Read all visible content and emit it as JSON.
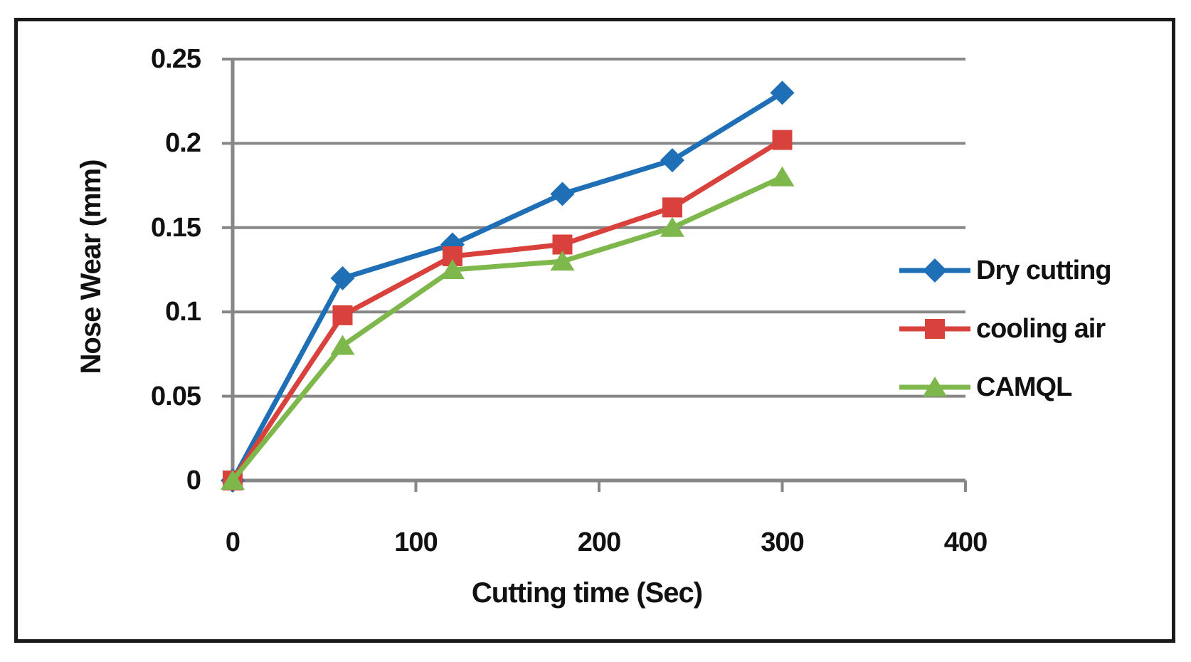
{
  "figure": {
    "background": "#ffffff",
    "border_color": "#1a1a1a",
    "axis_color": "#878787",
    "text_color": "#111111"
  },
  "chart_data": {
    "type": "line",
    "title": "",
    "xlabel": "Cutting time (Sec)",
    "ylabel": "Nose Wear (mm)",
    "x": [
      0,
      60,
      120,
      180,
      240,
      300
    ],
    "series": [
      {
        "name": "Dry cutting",
        "marker": "diamond",
        "color": "#1E6FB5",
        "values": [
          0,
          0.12,
          0.14,
          0.17,
          0.19,
          0.23
        ]
      },
      {
        "name": "cooling air",
        "marker": "square",
        "color": "#D9423C",
        "values": [
          0,
          0.098,
          0.133,
          0.14,
          0.162,
          0.202
        ]
      },
      {
        "name": "CAMQL",
        "marker": "triangle",
        "color": "#7EB84D",
        "values": [
          0,
          0.08,
          0.125,
          0.13,
          0.15,
          0.18
        ]
      }
    ],
    "x_tick_values": [
      0,
      100,
      200,
      300,
      400
    ],
    "x_tick_labels": [
      "0",
      "100",
      "200",
      "300",
      "400"
    ],
    "y_tick_values": [
      0,
      0.05,
      0.1,
      0.15,
      0.2,
      0.25
    ],
    "y_tick_labels": [
      "0",
      "0.05",
      "0.1",
      "0.15",
      "0.2",
      "0.25"
    ],
    "xlim": [
      0,
      400
    ],
    "ylim": [
      0,
      0.25
    ],
    "grid": "horizontal",
    "legend_position": "right"
  }
}
